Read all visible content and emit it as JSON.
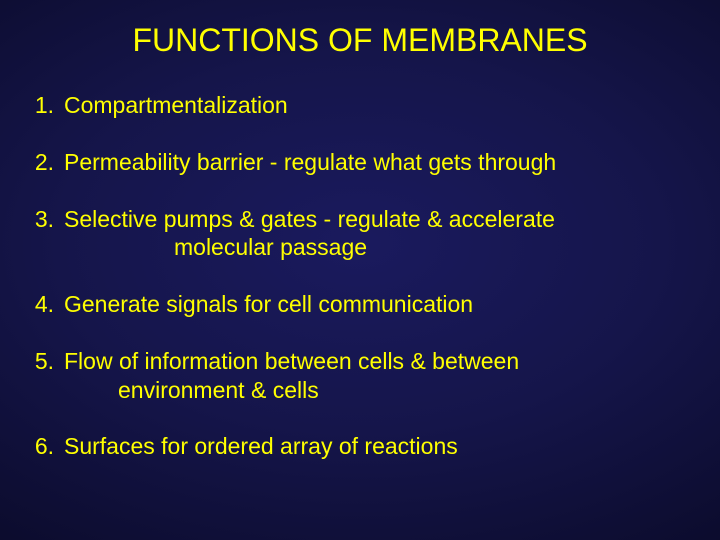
{
  "slide": {
    "title": "FUNCTIONS OF MEMBRANES",
    "title_color": "#ffff00",
    "text_color": "#ffff00",
    "background": {
      "type": "radial-gradient",
      "inner_color": "#1a1a5e",
      "mid_color": "#15154a",
      "outer_color": "#000000"
    },
    "font_family": "Arial",
    "title_fontsize": 32,
    "body_fontsize": 23,
    "items": [
      {
        "n": "1.",
        "text": "Compartmentalization"
      },
      {
        "n": "2.",
        "text": "Permeability barrier - regulate what gets through"
      },
      {
        "n": "3.",
        "text": "Selective pumps & gates - regulate & accelerate",
        "cont": "molecular passage"
      },
      {
        "n": "4.",
        "text": "Generate signals for cell communication"
      },
      {
        "n": "5.",
        "text": "Flow of information between cells & between",
        "cont2": "environment & cells"
      },
      {
        "n": "6.",
        "text": "Surfaces for ordered array of reactions"
      }
    ]
  }
}
